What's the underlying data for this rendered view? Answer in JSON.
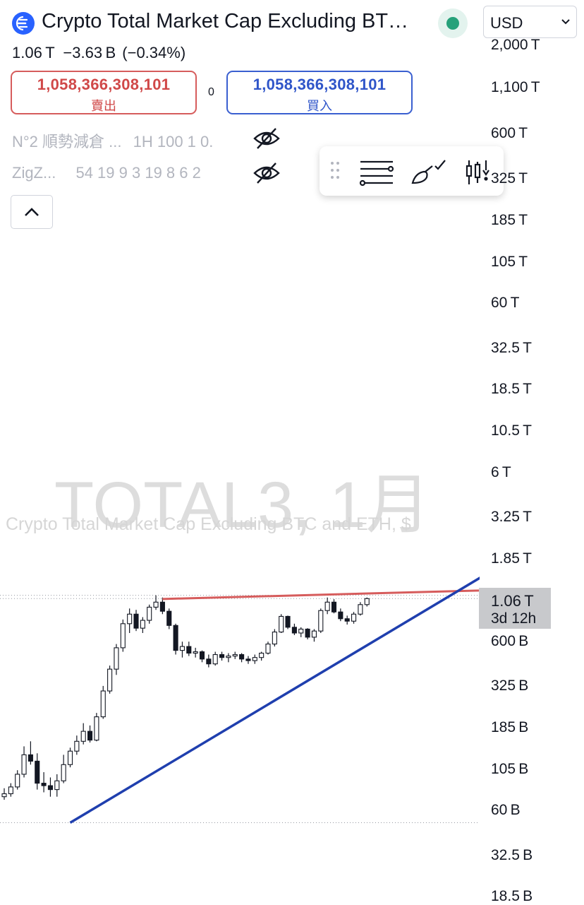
{
  "header": {
    "title": "Crypto Total Market Cap Excluding BT…",
    "currency": "USD"
  },
  "quote": {
    "last": "1.06 T",
    "change": "−3.63 B",
    "change_pct": "(−0.34%)"
  },
  "trade": {
    "sell_price": "1,058,366,308,101",
    "sell_label": "賣出",
    "spread": "0",
    "buy_price": "1,058,366,308,101",
    "buy_label": "買入"
  },
  "indicators": [
    {
      "name": "N°2 順勢減倉 ...",
      "values": "1H 100 1 0."
    },
    {
      "name": "ZigZ...",
      "values": "54 19 9 3 19 8 6 2"
    }
  ],
  "watermark": {
    "symbol": "TOTAL3, 1月",
    "description": "Crypto Total Market Cap Excluding BTC and ETH, $"
  },
  "icons": {
    "logo": "coin-logo-icon",
    "live": "market-open-dot-icon",
    "eye": "eye-off-icon",
    "collapse": "chevron-up-icon",
    "drag": "drag-handle-icon",
    "lines": "horizontal-lines-tool-icon",
    "brush": "brush-tool-icon",
    "candles": "candlestick-tool-icon"
  },
  "colors": {
    "sell": "#d04848",
    "buy": "#2f55c9",
    "live_dot": "#26a17a",
    "resistance_line": "#d65c5c",
    "trend_line": "#1f3fae"
  },
  "axis": {
    "labels": [
      "2,000 T",
      "1,100 T",
      "600 T",
      "325 T",
      "185 T",
      "105 T",
      "60 T",
      "32.5 T",
      "18.5 T",
      "10.5 T",
      "6 T",
      "3.25 T",
      "1.85 T",
      "600 B",
      "325 B",
      "185 B",
      "105 B",
      "60 B",
      "32.5 B",
      "18.5 B"
    ],
    "current_price": "1.06 T",
    "countdown": "3d 12h"
  },
  "chart_data": {
    "type": "candlestick",
    "interval": "1月",
    "y_scale": "log",
    "ylim": [
      17,
      2500
    ],
    "y_unit": "B",
    "ohlc": [
      [
        40,
        46,
        38,
        42
      ],
      [
        42,
        50,
        40,
        47
      ],
      [
        47,
        62,
        45,
        58
      ],
      [
        58,
        92,
        55,
        80
      ],
      [
        80,
        100,
        68,
        72
      ],
      [
        72,
        82,
        45,
        50
      ],
      [
        50,
        60,
        43,
        48
      ],
      [
        48,
        55,
        40,
        45
      ],
      [
        45,
        58,
        40,
        52
      ],
      [
        52,
        80,
        50,
        68
      ],
      [
        68,
        90,
        65,
        85
      ],
      [
        85,
        110,
        80,
        100
      ],
      [
        100,
        135,
        95,
        118
      ],
      [
        118,
        130,
        98,
        102
      ],
      [
        102,
        160,
        100,
        150
      ],
      [
        150,
        250,
        145,
        230
      ],
      [
        230,
        350,
        220,
        330
      ],
      [
        330,
        500,
        300,
        470
      ],
      [
        470,
        750,
        440,
        700
      ],
      [
        700,
        900,
        600,
        820
      ],
      [
        820,
        880,
        620,
        650
      ],
      [
        650,
        780,
        600,
        740
      ],
      [
        740,
        960,
        700,
        920
      ],
      [
        920,
        1120,
        880,
        1000
      ],
      [
        1000,
        1080,
        820,
        860
      ],
      [
        860,
        900,
        640,
        680
      ],
      [
        680,
        700,
        420,
        450
      ],
      [
        450,
        520,
        400,
        480
      ],
      [
        480,
        520,
        410,
        430
      ],
      [
        430,
        470,
        400,
        440
      ],
      [
        440,
        450,
        370,
        390
      ],
      [
        390,
        420,
        340,
        360
      ],
      [
        360,
        440,
        350,
        420
      ],
      [
        420,
        440,
        380,
        400
      ],
      [
        400,
        430,
        370,
        410
      ],
      [
        410,
        440,
        390,
        420
      ],
      [
        420,
        430,
        370,
        390
      ],
      [
        390,
        410,
        360,
        380
      ],
      [
        380,
        420,
        360,
        400
      ],
      [
        400,
        440,
        380,
        430
      ],
      [
        430,
        520,
        420,
        500
      ],
      [
        500,
        640,
        480,
        610
      ],
      [
        610,
        820,
        600,
        790
      ],
      [
        790,
        800,
        640,
        660
      ],
      [
        660,
        700,
        580,
        600
      ],
      [
        600,
        660,
        560,
        640
      ],
      [
        640,
        650,
        540,
        560
      ],
      [
        560,
        640,
        520,
        620
      ],
      [
        620,
        900,
        600,
        870
      ],
      [
        870,
        1080,
        820,
        1000
      ],
      [
        1000,
        1050,
        830,
        850
      ],
      [
        850,
        900,
        730,
        760
      ],
      [
        760,
        800,
        690,
        730
      ],
      [
        730,
        850,
        700,
        820
      ],
      [
        820,
        1000,
        800,
        960
      ],
      [
        960,
        1080,
        930,
        1060
      ]
    ],
    "resistance_level": 1130,
    "trend_line": [
      [
        0,
        26
      ],
      [
        62,
        2100
      ]
    ]
  }
}
